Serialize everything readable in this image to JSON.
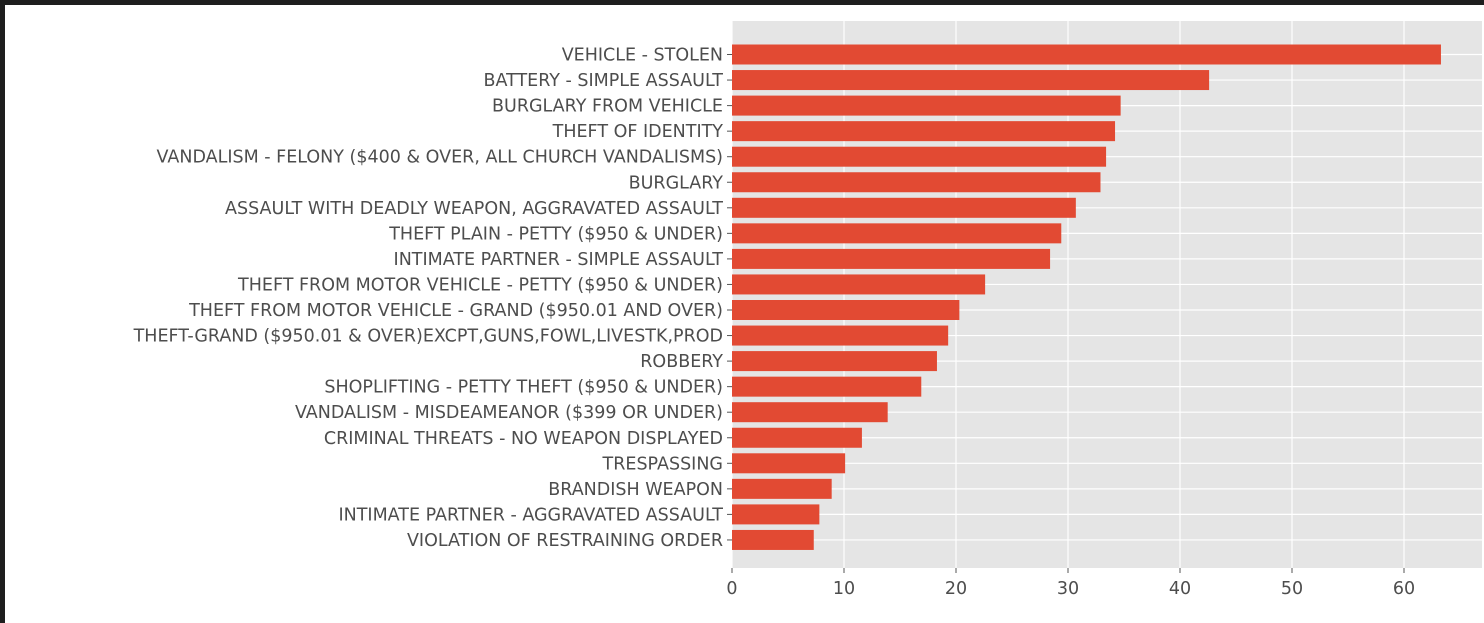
{
  "chart_data": {
    "type": "bar",
    "orientation": "horizontal",
    "title": "",
    "xlabel": "",
    "ylabel": "",
    "xlim": [
      0,
      65
    ],
    "xticks": [
      0,
      10,
      20,
      30,
      40,
      50,
      60
    ],
    "grid": true,
    "style": "ggplot",
    "bar_color": "#E24A33",
    "background_color": "#E5E5E5",
    "categories": [
      "VEHICLE - STOLEN",
      "BATTERY - SIMPLE ASSAULT",
      "BURGLARY FROM VEHICLE",
      "THEFT OF IDENTITY",
      "VANDALISM - FELONY ($400 & OVER, ALL CHURCH VANDALISMS)",
      "BURGLARY",
      "ASSAULT WITH DEADLY WEAPON, AGGRAVATED ASSAULT",
      "THEFT PLAIN - PETTY ($950 & UNDER)",
      "INTIMATE PARTNER - SIMPLE ASSAULT",
      "THEFT FROM MOTOR VEHICLE - PETTY ($950 & UNDER)",
      "THEFT FROM MOTOR VEHICLE - GRAND ($950.01 AND OVER)",
      "THEFT-GRAND ($950.01 & OVER)EXCPT,GUNS,FOWL,LIVESTK,PROD",
      "ROBBERY",
      "SHOPLIFTING - PETTY THEFT ($950 & UNDER)",
      "VANDALISM - MISDEAMEANOR ($399 OR UNDER)",
      "CRIMINAL THREATS - NO WEAPON DISPLAYED",
      "TRESPASSING",
      "BRANDISH WEAPON",
      "INTIMATE PARTNER - AGGRAVATED ASSAULT",
      "VIOLATION OF RESTRAINING ORDER"
    ],
    "values": [
      63.3,
      42.6,
      34.7,
      34.2,
      33.4,
      32.9,
      30.7,
      29.4,
      28.4,
      22.6,
      20.3,
      19.3,
      18.3,
      16.9,
      13.9,
      11.6,
      10.1,
      8.9,
      7.8,
      7.3
    ]
  }
}
